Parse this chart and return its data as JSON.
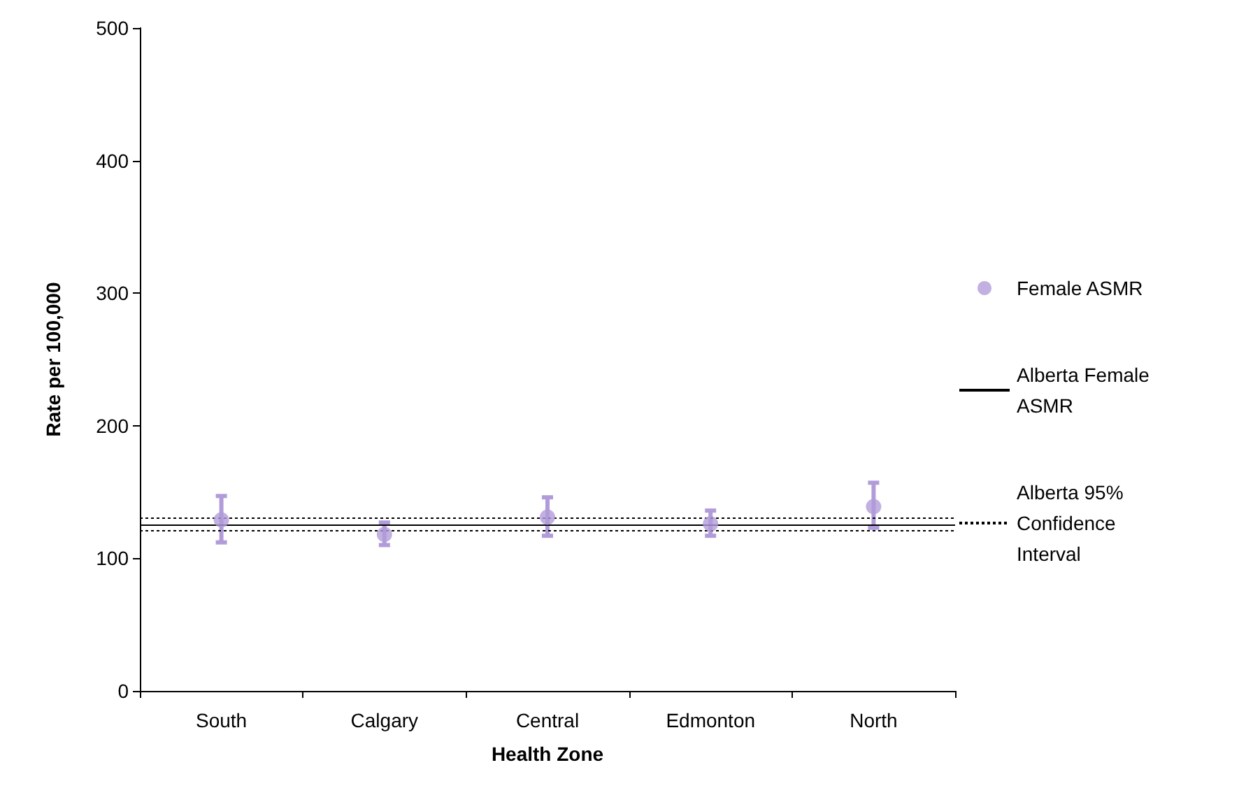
{
  "chart_data": {
    "type": "scatter",
    "xlabel": "Health Zone",
    "ylabel": "Rate per 100,000",
    "categories": [
      "South",
      "Calgary",
      "Central",
      "Edmonton",
      "North"
    ],
    "series": [
      {
        "name": "Female ASMR",
        "color": "#b19cd9",
        "values": [
          129,
          118,
          131,
          126,
          139
        ],
        "errors": [
          [
            112,
            147
          ],
          [
            110,
            127
          ],
          [
            117,
            146
          ],
          [
            117,
            136
          ],
          [
            123,
            157
          ]
        ]
      }
    ],
    "ref_lines": [
      {
        "axis": "y",
        "value": 125,
        "label": "Alberta Female ASMR",
        "color": "#000000",
        "line_style": "solid"
      },
      {
        "axis": "y",
        "value": 131,
        "label": "Alberta 95% Confidence Interval",
        "color": "#000000",
        "line_style": "dotted"
      },
      {
        "axis": "y",
        "value": 121,
        "label": null,
        "color": "#000000",
        "line_style": "dotted"
      }
    ],
    "ylim": [
      0,
      500
    ],
    "yticks": [
      0,
      100,
      200,
      300,
      400,
      500
    ],
    "grid": false,
    "legend": "right",
    "marker": "circle"
  }
}
